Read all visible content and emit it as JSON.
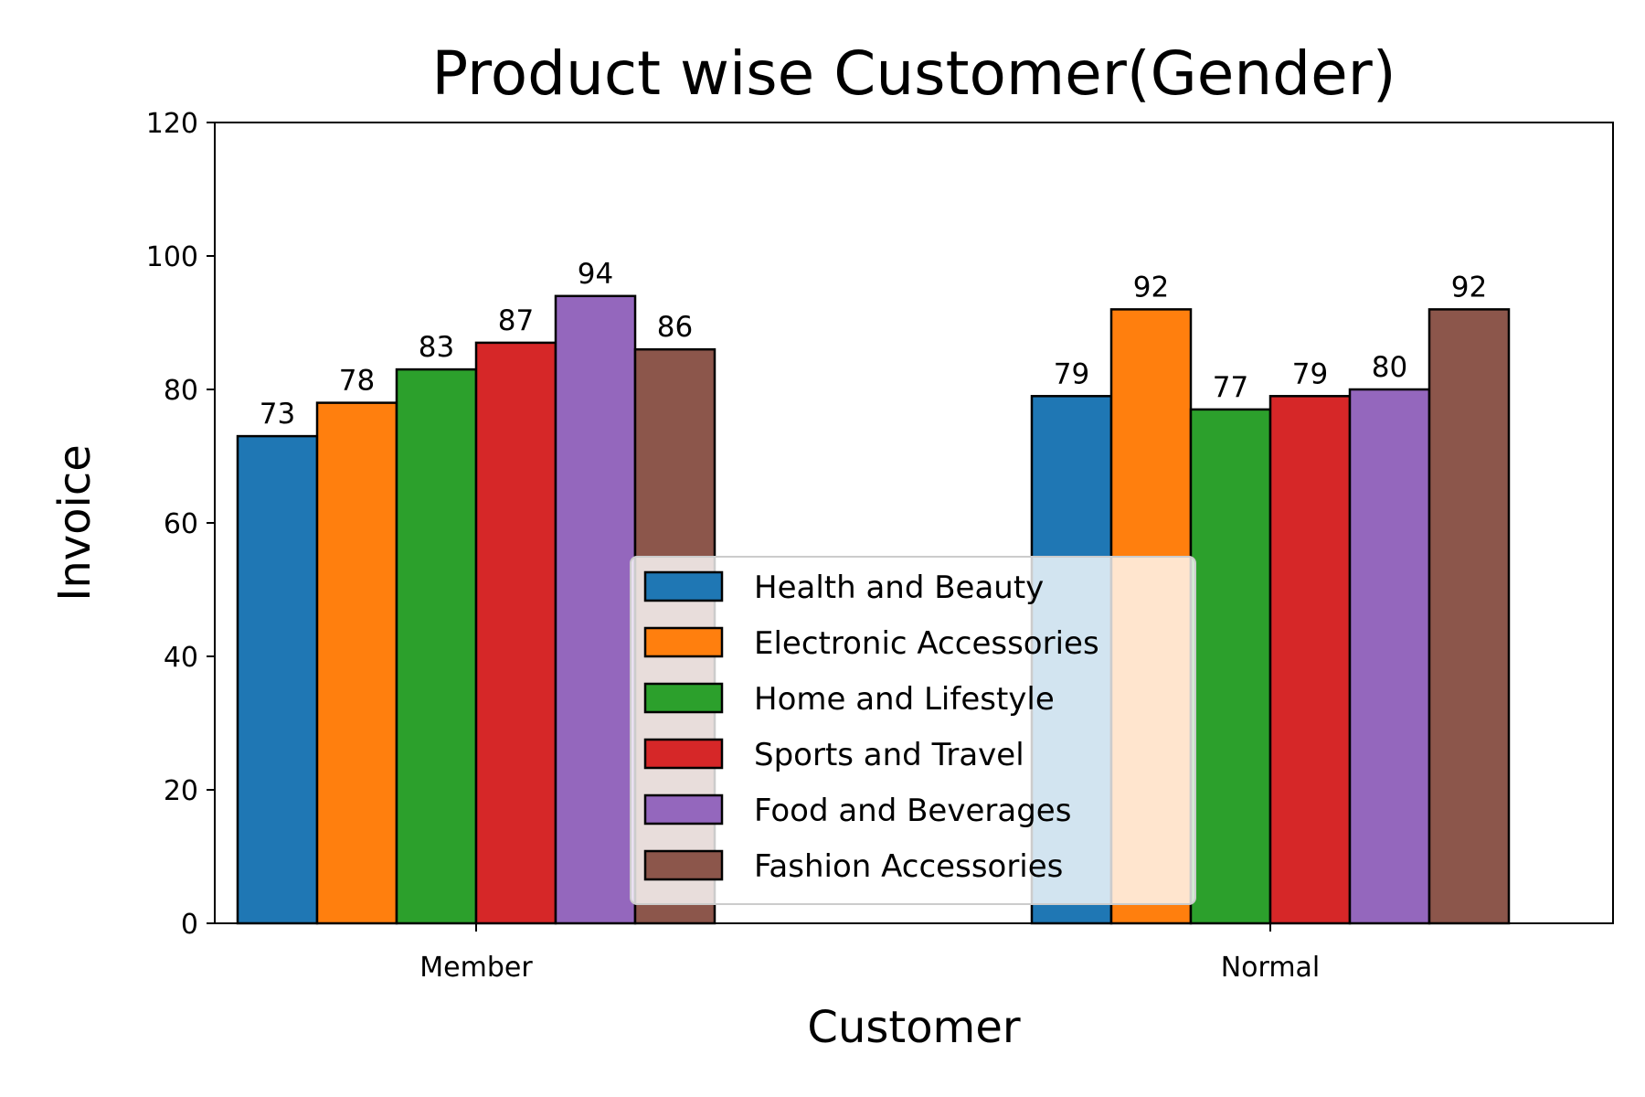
{
  "chart_data": {
    "type": "bar",
    "title": "Product wise Customer(Gender)",
    "xlabel": "Customer",
    "ylabel": "Invoice",
    "categories": [
      "Member",
      "Normal"
    ],
    "ylim": [
      0,
      120
    ],
    "yticks": [
      0,
      20,
      40,
      60,
      80,
      100,
      120
    ],
    "grid": false,
    "legend_position": "bottom-center",
    "series": [
      {
        "name": "Health and Beauty",
        "color": "#1f77b4",
        "values": [
          73,
          79
        ]
      },
      {
        "name": "Electronic Accessories",
        "color": "#ff7f0e",
        "values": [
          78,
          92
        ]
      },
      {
        "name": "Home and Lifestyle",
        "color": "#2ca02c",
        "values": [
          83,
          77
        ]
      },
      {
        "name": "Sports and Travel",
        "color": "#d62728",
        "values": [
          87,
          79
        ]
      },
      {
        "name": "Food and Beverages",
        "color": "#9467bd",
        "values": [
          94,
          80
        ]
      },
      {
        "name": "Fashion Accessories",
        "color": "#8c564b",
        "values": [
          86,
          92
        ]
      }
    ]
  }
}
